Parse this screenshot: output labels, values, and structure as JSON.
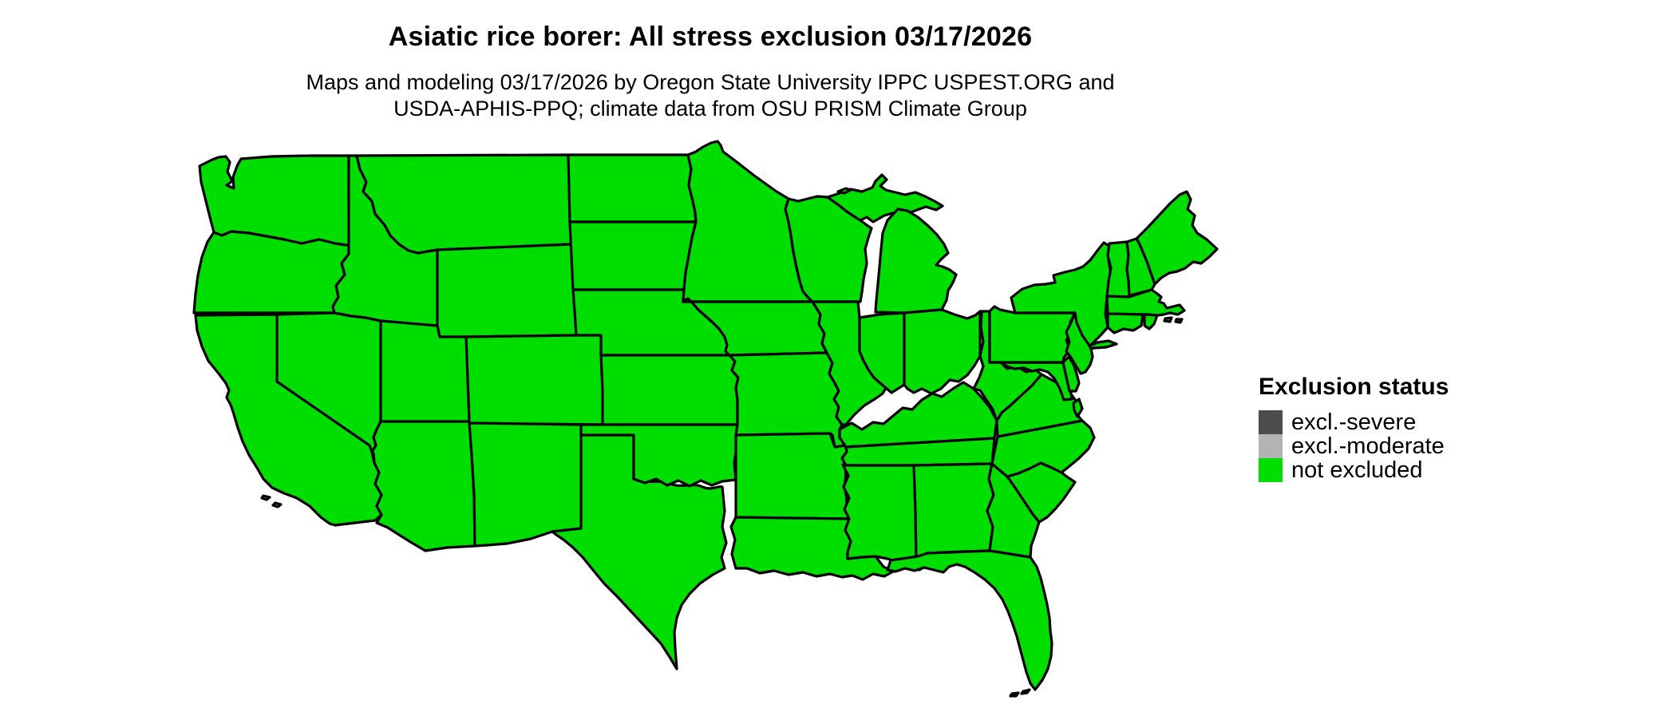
{
  "header": {
    "title": "Asiatic rice borer: All stress exclusion 03/17/2026",
    "subtitle_line1": "Maps and modeling 03/17/2026 by Oregon State University IPPC USPEST.ORG and",
    "subtitle_line2": "USDA-APHIS-PPQ; climate data from OSU PRISM Climate Group"
  },
  "legend": {
    "title": "Exclusion status",
    "items": [
      {
        "label": "excl.-severe",
        "color": "#4d4d4d"
      },
      {
        "label": "excl.-moderate",
        "color": "#b3b3b3"
      },
      {
        "label": "not excluded",
        "color": "#00de00"
      }
    ]
  },
  "map": {
    "type": "choropleth",
    "region": "Contiguous United States (state outlines)",
    "all_states_status": "not excluded",
    "fill_color": "#00de00",
    "border_color": "#000000",
    "background_color": "#ffffff"
  }
}
